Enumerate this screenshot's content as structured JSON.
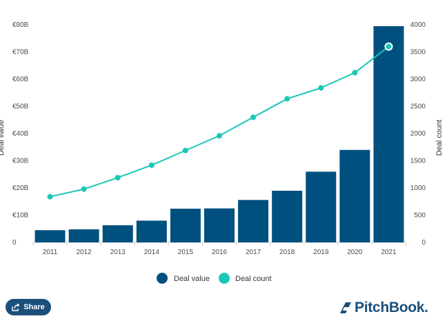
{
  "chart_data": {
    "type": "bar+line",
    "categories": [
      "2011",
      "2012",
      "2013",
      "2014",
      "2015",
      "2016",
      "2017",
      "2018",
      "2019",
      "2020",
      "2021"
    ],
    "series": [
      {
        "name": "Deal value",
        "type": "bar",
        "axis": "left",
        "color": "#00507f",
        "values": [
          4.5,
          4.8,
          6.3,
          8.0,
          12.4,
          12.5,
          15.6,
          19.0,
          26.0,
          34.0,
          79.5
        ]
      },
      {
        "name": "Deal count",
        "type": "line",
        "axis": "right",
        "color": "#18c8b4",
        "values": [
          840,
          980,
          1190,
          1420,
          1690,
          1960,
          2300,
          2640,
          2840,
          3120,
          3600
        ]
      }
    ],
    "y_left": {
      "label": "Deal value",
      "range": [
        0,
        80
      ],
      "ticks": [
        "0",
        "€10B",
        "€20B",
        "€30B",
        "€40B",
        "€50B",
        "€60B",
        "€70B",
        "€80B"
      ]
    },
    "y_right": {
      "label": "Deal count",
      "range": [
        0,
        4000
      ],
      "ticks": [
        "0",
        "500",
        "1000",
        "1500",
        "2000",
        "2500",
        "3000",
        "3500",
        "4000"
      ]
    },
    "legend": [
      "Deal value",
      "Deal count"
    ],
    "legend_position": "bottom"
  },
  "share": {
    "label": "Share"
  },
  "brand": {
    "name": "PitchBook."
  }
}
